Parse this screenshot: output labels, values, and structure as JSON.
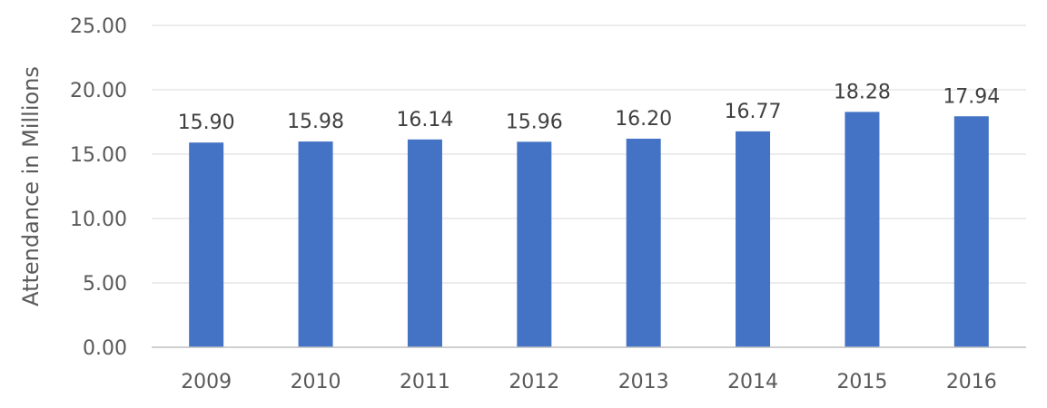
{
  "chart_data": {
    "type": "bar",
    "categories": [
      "2009",
      "2010",
      "2011",
      "2012",
      "2013",
      "2014",
      "2015",
      "2016"
    ],
    "values": [
      15.9,
      15.98,
      16.14,
      15.96,
      16.2,
      16.77,
      18.28,
      17.94
    ],
    "data_labels": [
      "15.90",
      "15.98",
      "16.14",
      "15.96",
      "16.20",
      "16.77",
      "18.28",
      "17.94"
    ],
    "ylabel": "Attendance in Millions",
    "xlabel": "",
    "ylim": [
      0,
      25
    ],
    "y_ticks": [
      0,
      5,
      10,
      15,
      20,
      25
    ],
    "y_tick_labels": [
      "0.00",
      "5.00",
      "10.00",
      "15.00",
      "20.00",
      "25.00"
    ],
    "grid": true,
    "legend": "none",
    "bar_color": "#4472C4",
    "grid_color": "#e6e6e6",
    "axis_color": "#bfbfbf"
  }
}
